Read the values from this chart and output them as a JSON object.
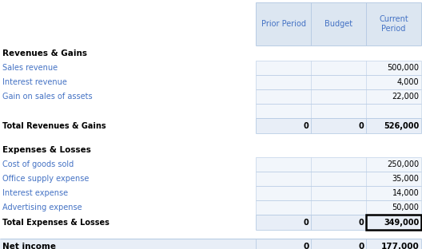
{
  "headers": [
    "Prior Period",
    "Budget",
    "Current\nPeriod"
  ],
  "header_bg": "#dce6f1",
  "total_bg": "#e8eef7",
  "net_bg": "#e8eef7",
  "border_color": "#b8cce4",
  "text_color": "#000000",
  "blue_text": "#4472c4",
  "col_starts": [
    0.607,
    0.737,
    0.868
  ],
  "col_ends": [
    0.737,
    0.868,
    0.998
  ],
  "rows": [
    {
      "type": "header",
      "label": "",
      "prior": "Prior Period",
      "budget": "Budget",
      "current": "Current\nPeriod",
      "bold": false,
      "blue": false
    },
    {
      "type": "section_header",
      "label": "Revenues & Gains",
      "prior": "",
      "budget": "",
      "current": "",
      "bold": true,
      "blue": false
    },
    {
      "type": "data",
      "label": "Sales revenue",
      "prior": "",
      "budget": "",
      "current": "500,000",
      "bold": false,
      "blue": true
    },
    {
      "type": "data",
      "label": "Interest revenue",
      "prior": "",
      "budget": "",
      "current": "4,000",
      "bold": false,
      "blue": true
    },
    {
      "type": "data",
      "label": "Gain on sales of assets",
      "prior": "",
      "budget": "",
      "current": "22,000",
      "bold": false,
      "blue": true
    },
    {
      "type": "data",
      "label": "",
      "prior": "",
      "budget": "",
      "current": "",
      "bold": false,
      "blue": false
    },
    {
      "type": "total",
      "label": "Total Revenues & Gains",
      "prior": "0",
      "budget": "0",
      "current": "526,000",
      "bold": true,
      "blue": false
    },
    {
      "type": "spacer",
      "label": "",
      "prior": "",
      "budget": "",
      "current": "",
      "bold": false,
      "blue": false
    },
    {
      "type": "section_header",
      "label": "Expenses & Losses",
      "prior": "",
      "budget": "",
      "current": "",
      "bold": true,
      "blue": false
    },
    {
      "type": "data",
      "label": "Cost of goods sold",
      "prior": "",
      "budget": "",
      "current": "250,000",
      "bold": false,
      "blue": true
    },
    {
      "type": "data",
      "label": "Office supply expense",
      "prior": "",
      "budget": "",
      "current": "35,000",
      "bold": false,
      "blue": true
    },
    {
      "type": "data",
      "label": "Interest expense",
      "prior": "",
      "budget": "",
      "current": "14,000",
      "bold": false,
      "blue": true
    },
    {
      "type": "data",
      "label": "Advertising expense",
      "prior": "",
      "budget": "",
      "current": "50,000",
      "bold": false,
      "blue": true
    },
    {
      "type": "total_special",
      "label": "Total Expenses & Losses",
      "prior": "0",
      "budget": "0",
      "current": "349,000",
      "bold": true,
      "blue": false
    },
    {
      "type": "spacer",
      "label": "",
      "prior": "",
      "budget": "",
      "current": "",
      "bold": false,
      "blue": false
    },
    {
      "type": "net",
      "label": "Net income",
      "prior": "0",
      "budget": "0",
      "current": "177,000",
      "bold": true,
      "blue": false
    }
  ]
}
